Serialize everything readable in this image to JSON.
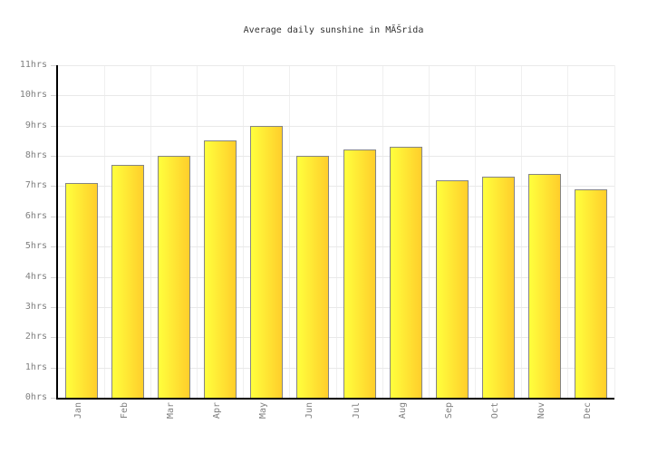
{
  "chart_data": {
    "type": "bar",
    "title": "Average daily sunshine in MĂŠrida",
    "categories": [
      "Jan",
      "Feb",
      "Mar",
      "Apr",
      "May",
      "Jun",
      "Jul",
      "Aug",
      "Sep",
      "Oct",
      "Nov",
      "Dec"
    ],
    "values": [
      7.1,
      7.7,
      8.0,
      8.5,
      9.0,
      8.0,
      8.2,
      8.3,
      7.2,
      7.3,
      7.4,
      6.9
    ],
    "unit": "hrs",
    "y_tick_labels": [
      "0hrs",
      "1hrs",
      "2hrs",
      "3hrs",
      "4hrs",
      "5hrs",
      "6hrs",
      "7hrs",
      "8hrs",
      "9hrs",
      "10hrs",
      "11hrs"
    ],
    "ylim": [
      0,
      11
    ],
    "grid": true,
    "legend": "none",
    "xlabel": "",
    "ylabel": "",
    "colors": {
      "bar_gradient_start": "#FFFF3D",
      "bar_gradient_end": "#FFCE2B",
      "bar_border": "#858585",
      "gridline": "#E9E9E9",
      "axis": "#000000",
      "tick_label": "#808080",
      "title": "#333333",
      "background": "#FFFFFF"
    }
  }
}
